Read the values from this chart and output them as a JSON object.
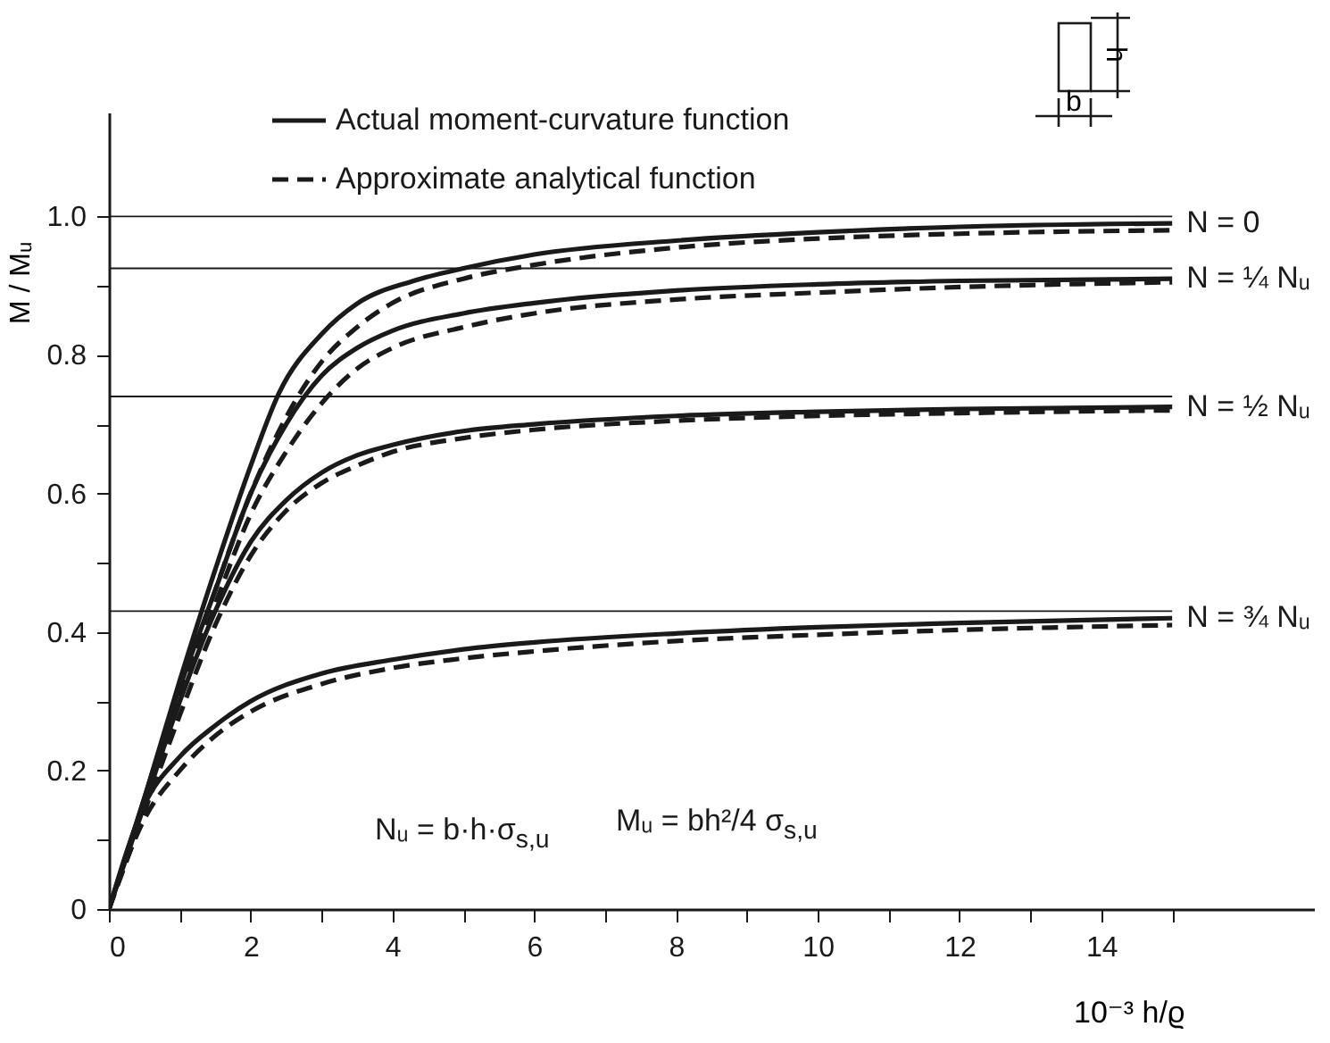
{
  "chart_data": {
    "type": "line",
    "xlabel": "10⁻³ h/ϱ",
    "ylabel": "M / Mᵤ",
    "xlim": [
      0,
      17
    ],
    "ylim": [
      0,
      1.15
    ],
    "xticks": [
      0,
      {
        "value": 1,
        "label": null
      },
      2,
      {
        "value": 3,
        "label": null
      },
      4,
      {
        "value": 5,
        "label": null
      },
      6,
      {
        "value": 7,
        "label": null
      },
      8,
      {
        "value": 9,
        "label": null
      },
      10,
      {
        "value": 11,
        "label": null
      },
      12,
      {
        "value": 13,
        "label": null
      },
      14,
      {
        "value": 15,
        "label": null
      }
    ],
    "yticks": [
      0,
      {
        "value": 0.1,
        "label": null
      },
      0.2,
      {
        "value": 0.3,
        "label": null
      },
      0.4,
      {
        "value": 0.5,
        "label": null
      },
      0.6,
      {
        "value": 0.7,
        "label": null
      },
      0.8,
      {
        "value": 0.9,
        "label": null
      },
      {
        "value": 1,
        "label": "1.0"
      }
    ],
    "legend": "top left",
    "series": [
      {
        "name": "Actual moment-curvature function",
        "color": "#1a1a1a",
        "line_style": "solid",
        "x": [
          0,
          0.5,
          1,
          1.5,
          2,
          2.4,
          3,
          3.5,
          4.3,
          5,
          6,
          8,
          10,
          12,
          15
        ],
        "values": [
          0,
          0.16,
          0.33,
          0.49,
          0.64,
          0.745,
          0.83,
          0.874,
          0.907,
          0.925,
          0.945,
          0.965,
          0.977,
          0.985,
          0.99
        ]
      },
      {
        "name": "Approximate analytical function",
        "color": "#1a1a1a",
        "line_style": "dashed",
        "x": [
          0,
          0.5,
          1,
          1.5,
          2,
          2.5,
          3,
          3.5,
          4,
          5,
          6,
          8,
          10,
          12,
          15
        ],
        "values": [
          0,
          0.15,
          0.31,
          0.46,
          0.6,
          0.71,
          0.79,
          0.84,
          0.875,
          0.91,
          0.93,
          0.955,
          0.968,
          0.975,
          0.98
        ]
      },
      {
        "color": "#1a1a1a",
        "line_style": "solid",
        "x": [
          0,
          0.5,
          1,
          1.5,
          2,
          2.5,
          3,
          3.5,
          4,
          5,
          6,
          8,
          10,
          12,
          15
        ],
        "values": [
          0,
          0.16,
          0.32,
          0.46,
          0.6,
          0.7,
          0.77,
          0.81,
          0.835,
          0.86,
          0.875,
          0.893,
          0.902,
          0.907,
          0.91
        ]
      },
      {
        "color": "#1a1a1a",
        "line_style": "dashed",
        "x": [
          0,
          0.5,
          1,
          1.5,
          2,
          2.5,
          3,
          3.5,
          4,
          5,
          6,
          8,
          10,
          12,
          15
        ],
        "values": [
          0,
          0.15,
          0.3,
          0.44,
          0.57,
          0.66,
          0.73,
          0.78,
          0.81,
          0.84,
          0.86,
          0.88,
          0.89,
          0.898,
          0.905
        ]
      },
      {
        "color": "#1a1a1a",
        "line_style": "solid",
        "x": [
          0,
          0.5,
          1,
          1.5,
          2,
          2.5,
          3,
          3.5,
          4,
          5,
          6,
          8,
          10,
          12,
          15
        ],
        "values": [
          0,
          0.15,
          0.3,
          0.43,
          0.53,
          0.59,
          0.63,
          0.655,
          0.67,
          0.69,
          0.7,
          0.712,
          0.718,
          0.722,
          0.725
        ]
      },
      {
        "color": "#1a1a1a",
        "line_style": "dashed",
        "x": [
          0,
          0.5,
          1,
          1.5,
          2,
          2.5,
          3,
          3.5,
          4,
          5,
          6,
          8,
          10,
          12,
          15
        ],
        "values": [
          0,
          0.14,
          0.28,
          0.41,
          0.51,
          0.575,
          0.615,
          0.64,
          0.66,
          0.68,
          0.692,
          0.705,
          0.712,
          0.716,
          0.72
        ]
      },
      {
        "color": "#1a1a1a",
        "line_style": "solid",
        "x": [
          0,
          0.5,
          1,
          1.5,
          2,
          3,
          4,
          5,
          6,
          8,
          10,
          12,
          15
        ],
        "values": [
          0,
          0.15,
          0.22,
          0.265,
          0.3,
          0.34,
          0.36,
          0.375,
          0.385,
          0.398,
          0.407,
          0.413,
          0.42
        ]
      },
      {
        "color": "#1a1a1a",
        "line_style": "dashed",
        "x": [
          0,
          0.5,
          1,
          1.5,
          2,
          3,
          4,
          5,
          6,
          8,
          10,
          12,
          15
        ],
        "values": [
          0,
          0.13,
          0.2,
          0.25,
          0.285,
          0.325,
          0.348,
          0.362,
          0.372,
          0.387,
          0.396,
          0.403,
          0.41
        ]
      }
    ],
    "ref_lines": [
      {
        "axis": "y",
        "value": 1,
        "color": "#1a1a1a"
      },
      {
        "axis": "y",
        "value": 0.925,
        "color": "#1a1a1a"
      },
      {
        "axis": "y",
        "value": 0.74,
        "color": "#1a1a1a"
      },
      {
        "axis": "y",
        "value": 0.43,
        "color": "#1a1a1a"
      }
    ],
    "annotations": [
      "Nᵤ = b·h·σ$_{s,u}$",
      "Mᵤ = bh²/4 σ$_{s,u}$",
      "b",
      "h",
      "N = 0",
      "N = ¼ Nᵤ",
      "N = ½ Nᵤ",
      "N = ¾ Nᵤ"
    ]
  }
}
